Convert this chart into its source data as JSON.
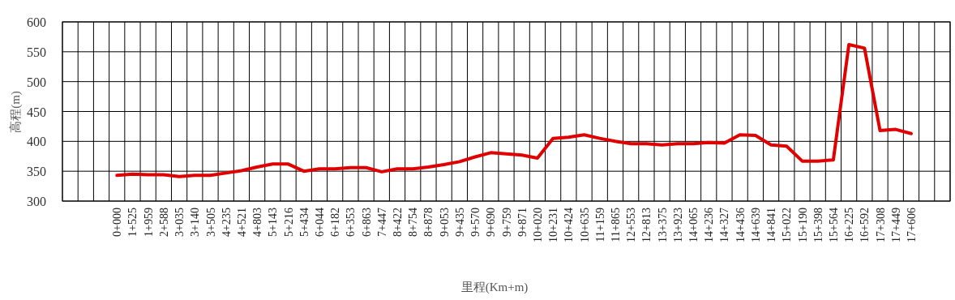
{
  "chart_data": {
    "type": "line",
    "xlabel": "里程(Km+m)",
    "ylabel": "高程(m)",
    "categories": [
      null,
      null,
      null,
      "0+000",
      "1+525",
      "1+959",
      "2+588",
      "3+035",
      "3+140",
      "3+505",
      "4+235",
      "4+521",
      "4+803",
      "5+143",
      "5+216",
      "5+434",
      "6+044",
      "6+182",
      "6+353",
      "6+863",
      "7+447",
      "8+422",
      "8+754",
      "8+878",
      "9+053",
      "9+435",
      "9+570",
      "9+690",
      "9+759",
      "9+871",
      "10+020",
      "10+231",
      "10+424",
      "10+635",
      "11+159",
      "11+865",
      "12+553",
      "12+813",
      "13+375",
      "13+923",
      "14+065",
      "14+236",
      "14+327",
      "14+436",
      "14+639",
      "14+841",
      "15+022",
      "15+190",
      "15+398",
      "15+564",
      "16+225",
      "16+592",
      "17+308",
      "17+449",
      "17+606",
      null,
      null
    ],
    "values": [
      null,
      null,
      null,
      343,
      345,
      344,
      344,
      341,
      343,
      343,
      347,
      351,
      357,
      362,
      362,
      350,
      354,
      354,
      356,
      356,
      349,
      354,
      354,
      357,
      361,
      366,
      374,
      381,
      379,
      377,
      372,
      405,
      407,
      411,
      405,
      400,
      396,
      396,
      394,
      396,
      396,
      398,
      397,
      411,
      410,
      394,
      392,
      367,
      367,
      369,
      562,
      556,
      418,
      420,
      413,
      null,
      null
    ],
    "color": "#e00000",
    "ylim": [
      300,
      600
    ],
    "yticks": [
      300,
      350,
      400,
      450,
      500,
      550,
      600
    ],
    "grid": true
  }
}
